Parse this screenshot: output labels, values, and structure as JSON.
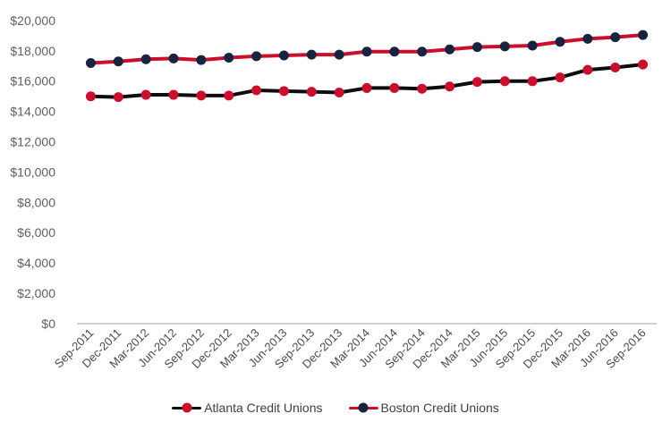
{
  "chart_data": {
    "type": "line",
    "title": "",
    "xlabel": "",
    "ylabel": "",
    "categories": [
      "Sep-2011",
      "Dec-2011",
      "Mar-2012",
      "Jun-2012",
      "Sep-2012",
      "Dec-2012",
      "Mar-2013",
      "Jun-2013",
      "Sep-2013",
      "Dec-2013",
      "Mar-2014",
      "Jun-2014",
      "Sep-2014",
      "Dec-2014",
      "Mar-2015",
      "Jun-2015",
      "Sep-2015",
      "Dec-2015",
      "Mar-2016",
      "Jun-2016",
      "Sep-2016"
    ],
    "series": [
      {
        "name": "Atlanta Credit Unions",
        "line_color": "#0d0d0d",
        "marker_color": "#c8102e",
        "values": [
          15000,
          14950,
          15100,
          15100,
          15050,
          15050,
          15400,
          15350,
          15300,
          15250,
          15550,
          15550,
          15500,
          15650,
          15950,
          16000,
          16000,
          16250,
          16750,
          16900,
          17100
        ]
      },
      {
        "name": "Boston Credit Unions",
        "line_color": "#c8102e",
        "marker_color": "#18243e",
        "values": [
          17200,
          17300,
          17450,
          17500,
          17400,
          17550,
          17650,
          17700,
          17750,
          17750,
          17950,
          17950,
          17950,
          18100,
          18250,
          18300,
          18350,
          18600,
          18800,
          18900,
          19050
        ]
      }
    ],
    "ylim": [
      0,
      20000
    ],
    "ytick_step": 2000,
    "ytick_labels": [
      "$0",
      "$2,000",
      "$4,000",
      "$6,000",
      "$8,000",
      "$10,000",
      "$12,000",
      "$14,000",
      "$16,000",
      "$18,000",
      "$20,000"
    ],
    "grid": false,
    "x_labels_rotation_deg": -45,
    "legend_position": "bottom-center",
    "axis_line_color": "#bfbfbf"
  }
}
